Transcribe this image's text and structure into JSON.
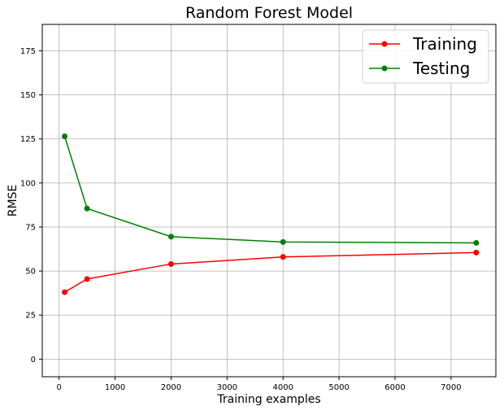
{
  "chart_data": {
    "type": "line",
    "title": "Random Forest Model",
    "xlabel": "Training examples",
    "ylabel": "RMSE",
    "xlim": [
      -300,
      7800
    ],
    "ylim": [
      -10,
      190
    ],
    "xticks": [
      0,
      1000,
      2000,
      3000,
      4000,
      5000,
      6000,
      7000
    ],
    "yticks": [
      0,
      25,
      50,
      75,
      100,
      125,
      150,
      175
    ],
    "grid": true,
    "legend_position": "top-right",
    "x": [
      100,
      500,
      2000,
      4000,
      7450
    ],
    "series": [
      {
        "name": "Training",
        "color": "#ff0000",
        "values": [
          38,
          45.5,
          54,
          58,
          60.5
        ],
        "marker": "circle"
      },
      {
        "name": "Testing",
        "color": "#008000",
        "values": [
          126.5,
          85.5,
          69.5,
          66.5,
          66
        ],
        "marker": "circle"
      }
    ]
  }
}
